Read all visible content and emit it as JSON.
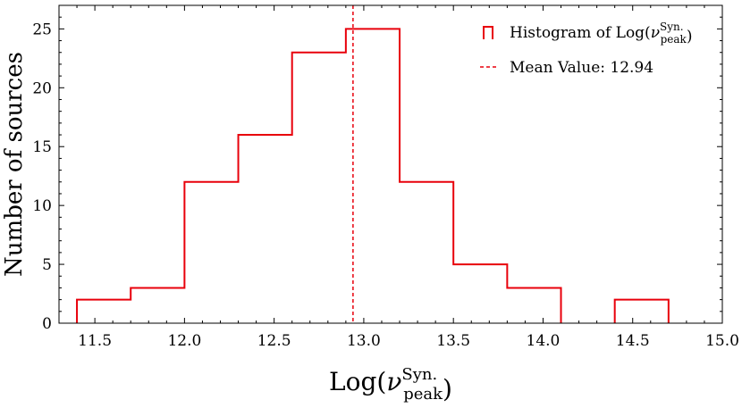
{
  "chart_data": {
    "type": "histogram",
    "bin_edges": [
      11.4,
      11.7,
      12.0,
      12.3,
      12.6,
      12.9,
      13.2,
      13.5,
      13.8,
      14.1,
      14.4,
      14.7
    ],
    "counts": [
      2,
      3,
      12,
      16,
      23,
      25,
      12,
      5,
      3,
      0,
      2
    ],
    "mean_value": 12.94,
    "xlim": [
      11.3,
      15.0
    ],
    "ylim": [
      0,
      27
    ],
    "x_ticks": [
      11.5,
      12.0,
      12.5,
      13.0,
      13.5,
      14.0,
      14.5,
      15.0
    ],
    "x_tick_labels": [
      "11.5",
      "12.0",
      "12.5",
      "13.0",
      "13.5",
      "14.0",
      "14.5",
      "15.0"
    ],
    "y_ticks": [
      0,
      5,
      10,
      15,
      20,
      25
    ],
    "y_tick_labels": [
      "0",
      "5",
      "10",
      "15",
      "20",
      "25"
    ],
    "xlabel": {
      "base": "Log(",
      "symbol": "ν",
      "superscript": "Syn.",
      "subscript": "peak",
      "close": ")"
    },
    "ylabel": "Number of sources",
    "legend": {
      "position": "top-right",
      "hist_prefix": "Histogram of Log(",
      "hist_symbol": "ν",
      "hist_superscript": "Syn.",
      "hist_subscript": "peak",
      "hist_suffix": ")",
      "mean_label": "Mean Value: 12.94"
    },
    "colors": {
      "hist": "#e8000b",
      "mean": "#e8000b"
    }
  }
}
